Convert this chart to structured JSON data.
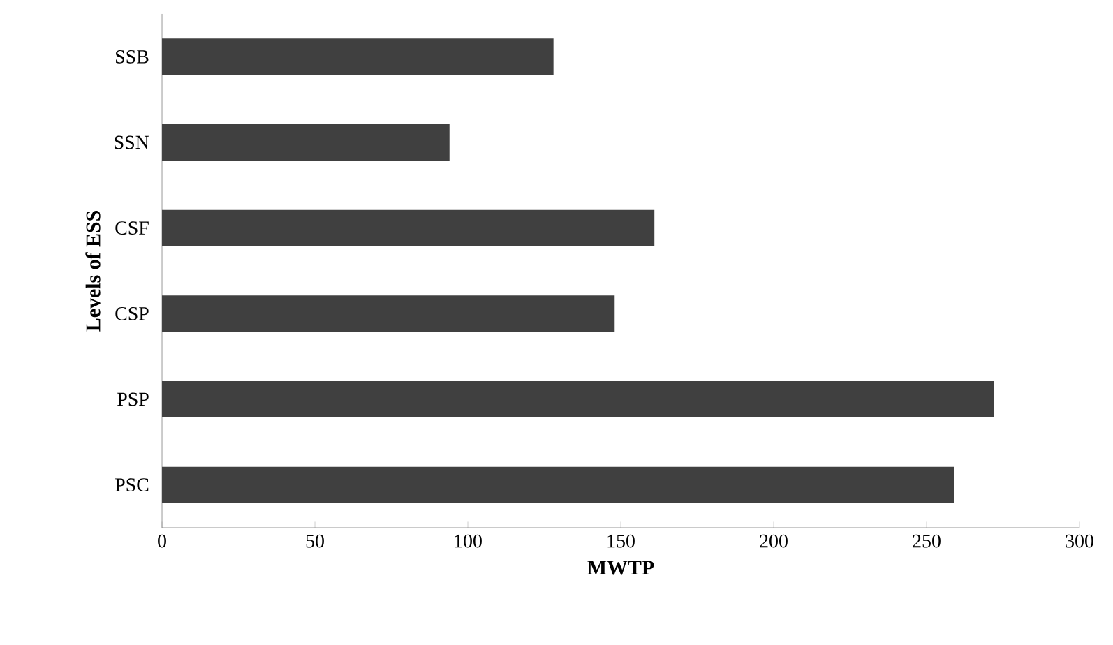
{
  "chart_data": {
    "type": "bar",
    "orientation": "horizontal",
    "xlabel": "MWTP",
    "ylabel": "Levels of ESS",
    "categories": [
      "SSB",
      "SSN",
      "CSF",
      "CSP",
      "PSP",
      "PSC"
    ],
    "values": [
      128,
      94,
      161,
      148,
      272,
      259
    ],
    "color": "#404040",
    "xlim": [
      0,
      300
    ],
    "xticks": [
      0,
      50,
      100,
      150,
      200,
      250,
      300
    ],
    "grid": false
  }
}
